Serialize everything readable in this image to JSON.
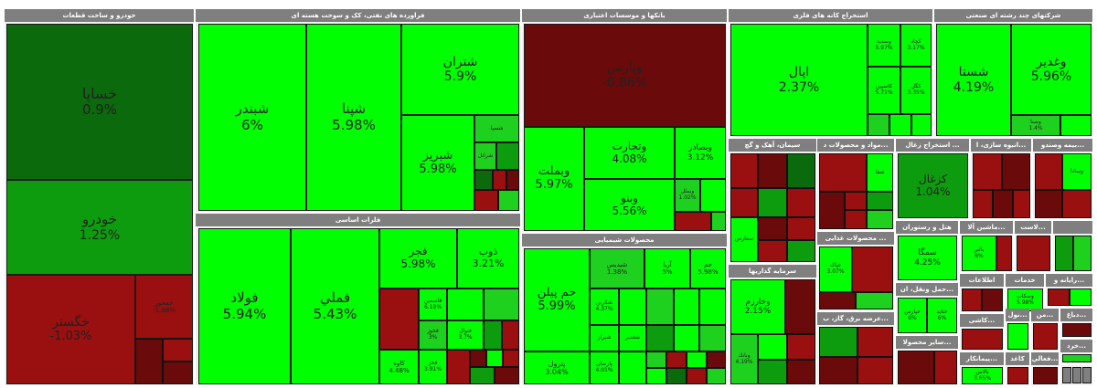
{
  "colors": {
    "header": "#7f7f7f",
    "bright_green": "#00ff00",
    "green": "#1fd11f",
    "mid_green": "#0d9c0d",
    "dark_green": "#0b6a0b",
    "red": "#9a0f0f",
    "dark_red": "#6a0a0a"
  },
  "sectors": [
    {
      "id": "auto",
      "title": "خودرو و ساخت قطعات",
      "tiles": [
        {
          "name": "خساپا",
          "pct": "0.9%",
          "icon": "dark_green"
        },
        {
          "name": "خودرو",
          "pct": "1.25%",
          "icon": "mid_green"
        },
        {
          "name": "خگستر",
          "pct": "-1.03%",
          "icon": "red"
        },
        {
          "name": "خمحور",
          "pct": "-1.08%",
          "icon": "red"
        }
      ]
    },
    {
      "id": "oil",
      "title": "فراورده های نفتی، کک و سوخت هسته ای",
      "tiles": [
        {
          "name": "شبندر",
          "pct": "6%",
          "icon": "bright_green"
        },
        {
          "name": "شپنا",
          "pct": "5.98%",
          "icon": "bright_green"
        },
        {
          "name": "شتران",
          "pct": "5.9%",
          "icon": "bright_green"
        },
        {
          "name": "شبریز",
          "pct": "5.98%",
          "icon": "bright_green"
        },
        {
          "name": "شسپا",
          "pct": "",
          "icon": "green"
        },
        {
          "name": "شرانل",
          "pct": "",
          "icon": "green"
        }
      ]
    },
    {
      "id": "metal",
      "title": "فلزات اساسی",
      "tiles": [
        {
          "name": "فولاد",
          "pct": "5.94%",
          "icon": "bright_green"
        },
        {
          "name": "فملي",
          "pct": "5.43%",
          "icon": "bright_green"
        },
        {
          "name": "فجر",
          "pct": "5.98%",
          "icon": "bright_green"
        },
        {
          "name": "ذوب",
          "pct": "3.21%",
          "icon": "bright_green"
        },
        {
          "name": "فاسمين",
          "pct": "6.19%",
          "icon": "bright_green"
        },
        {
          "name": "فخوز",
          "pct": "3%",
          "icon": "green"
        },
        {
          "name": "فنوال",
          "pct": "3.7%",
          "icon": "bright_green"
        },
        {
          "name": "کاوه",
          "pct": "4.48%",
          "icon": "bright_green"
        },
        {
          "name": "فخز",
          "pct": "3.91%",
          "icon": "bright_green"
        }
      ]
    },
    {
      "id": "bank",
      "title": "بانکها و موسسات اعتباری",
      "tiles": [
        {
          "name": "وپارس",
          "pct": "-0.86%",
          "icon": "dark_red"
        },
        {
          "name": "وبملت",
          "pct": "5.97%",
          "icon": "bright_green"
        },
        {
          "name": "وتجارت",
          "pct": "4.08%",
          "icon": "bright_green"
        },
        {
          "name": "وبصادر",
          "pct": "3.12%",
          "icon": "bright_green"
        },
        {
          "name": "وبنو",
          "pct": "5.56%",
          "icon": "bright_green"
        },
        {
          "name": "وبملل",
          "pct": "1.02%",
          "icon": "green"
        }
      ]
    },
    {
      "id": "chem",
      "title": "محصولات شیمیایی",
      "tiles": [
        {
          "name": "حم پیلن",
          "pct": "5.99%",
          "icon": "bright_green"
        },
        {
          "name": "شپدیس",
          "pct": "1.38%",
          "icon": "green"
        },
        {
          "name": "آریا",
          "pct": "5%",
          "icon": "bright_green"
        },
        {
          "name": "جم",
          "pct": "5.98%",
          "icon": "bright_green"
        },
        {
          "name": "شکربن",
          "pct": "4.37%",
          "icon": "bright_green"
        },
        {
          "name": "شیراز",
          "pct": "",
          "icon": "bright_green"
        },
        {
          "name": "شغدير",
          "pct": "",
          "icon": "bright_green"
        },
        {
          "name": "پترول",
          "pct": "3.04%",
          "icon": "bright_green"
        },
        {
          "name": "پارسان",
          "pct": "4.01%",
          "icon": "bright_green"
        }
      ]
    },
    {
      "id": "mining",
      "title": "استخراج کانه های فلزی",
      "tiles": [
        {
          "name": "کچاد",
          "pct": "3.17%",
          "icon": "bright_green"
        },
        {
          "name": "کگل",
          "pct": "3.35%",
          "icon": "bright_green"
        },
        {
          "name": "وسديد",
          "pct": "5.97%",
          "icon": "bright_green"
        },
        {
          "name": "کاسپين",
          "pct": "5.71%",
          "icon": "bright_green"
        },
        {
          "name": "اپال",
          "pct": "2.37%",
          "icon": "bright_green"
        }
      ]
    },
    {
      "id": "multi",
      "title": "شرکتهای چند رشته ای صنعتی",
      "tiles": [
        {
          "name": "شستا",
          "pct": "4.19%",
          "icon": "bright_green"
        },
        {
          "name": "وغدير",
          "pct": "5.96%",
          "icon": "bright_green"
        },
        {
          "name": "وصنا",
          "pct": "1.4%",
          "icon": "green"
        }
      ]
    },
    {
      "id": "cement",
      "title": "سیمان، آهک و گچ",
      "tiles": [
        {
          "name": "سفارس",
          "pct": "",
          "icon": "bright_green"
        }
      ]
    },
    {
      "id": "food",
      "title": "مواد و محصولات د...",
      "tiles": [
        {
          "name": "شفا",
          "pct": "",
          "icon": "bright_green"
        }
      ]
    },
    {
      "id": "coal",
      "title": "استخراج زغال ...",
      "tiles": [
        {
          "name": "کزغال",
          "pct": "1.04%",
          "icon": "mid_green"
        }
      ]
    },
    {
      "id": "build",
      "title": "انبوه سازی، ا...",
      "tiles": []
    },
    {
      "id": "insurance",
      "title": "بیمه وصندو...",
      "tiles": [
        {
          "name": "وسادا",
          "pct": "",
          "icon": "bright_green"
        }
      ]
    },
    {
      "id": "invest",
      "title": "سرمایه گذاریها",
      "tiles": [
        {
          "name": "وخارزم",
          "pct": "2.15%",
          "icon": "bright_green"
        },
        {
          "name": "وبانك",
          "pct": "4.19%",
          "icon": "green"
        }
      ]
    },
    {
      "id": "foodprod",
      "title": "محصولات غذایی ...",
      "tiles": [
        {
          "name": "غپاک",
          "pct": "3.07%",
          "icon": "bright_green"
        }
      ]
    },
    {
      "id": "hotel",
      "title": "هتل و رستوران",
      "tiles": [
        {
          "name": "سمگا",
          "pct": "4.25%",
          "icon": "bright_green"
        }
      ]
    },
    {
      "id": "machinery",
      "title": "ماشین آلا...",
      "tiles": [
        {
          "name": "بالبر",
          "pct": "6%",
          "icon": "bright_green"
        }
      ]
    },
    {
      "id": "plastic",
      "title": "لاست...",
      "tiles": []
    },
    {
      "id": "ceramic",
      "title": "کاشی...",
      "tiles": []
    },
    {
      "id": "utility",
      "title": "عرضه برق، گاز، ب...",
      "tiles": []
    },
    {
      "id": "transport",
      "title": "حمل ونقل، ان...",
      "tiles": [
        {
          "name": "حپارس",
          "pct": "6%",
          "icon": "bright_green"
        },
        {
          "name": "حتايد",
          "pct": "6%",
          "icon": "bright_green"
        }
      ]
    },
    {
      "id": "info",
      "title": "اطلاعات",
      "tiles": []
    },
    {
      "id": "services",
      "title": "خدمات",
      "tiles": [
        {
          "name": "وسكاب",
          "pct": "5.98%",
          "icon": "bright_green"
        }
      ]
    },
    {
      "id": "computer",
      "title": "رایانه و...",
      "tiles": []
    },
    {
      "id": "other",
      "title": "سایر محصولا...",
      "tiles": []
    },
    {
      "id": "contract",
      "title": "پیمانکار...",
      "tiles": [
        {
          "name": "بالاس",
          "pct": "3.65%",
          "icon": "bright_green"
        }
      ]
    },
    {
      "id": "misc1",
      "title": "کاغذ",
      "tiles": []
    },
    {
      "id": "misc2",
      "title": "منسو...",
      "tiles": []
    },
    {
      "id": "misc3",
      "title": "زراع...",
      "tiles": []
    },
    {
      "id": "misc4",
      "title": "دباغ...",
      "tiles": []
    },
    {
      "id": "misc5",
      "title": "من...",
      "tiles": []
    },
    {
      "id": "misc6",
      "title": "نول...",
      "tiles": []
    },
    {
      "id": "misc7",
      "title": "خرد...",
      "tiles": []
    },
    {
      "id": "misc8",
      "title": "فعالي...",
      "tiles": []
    }
  ]
}
